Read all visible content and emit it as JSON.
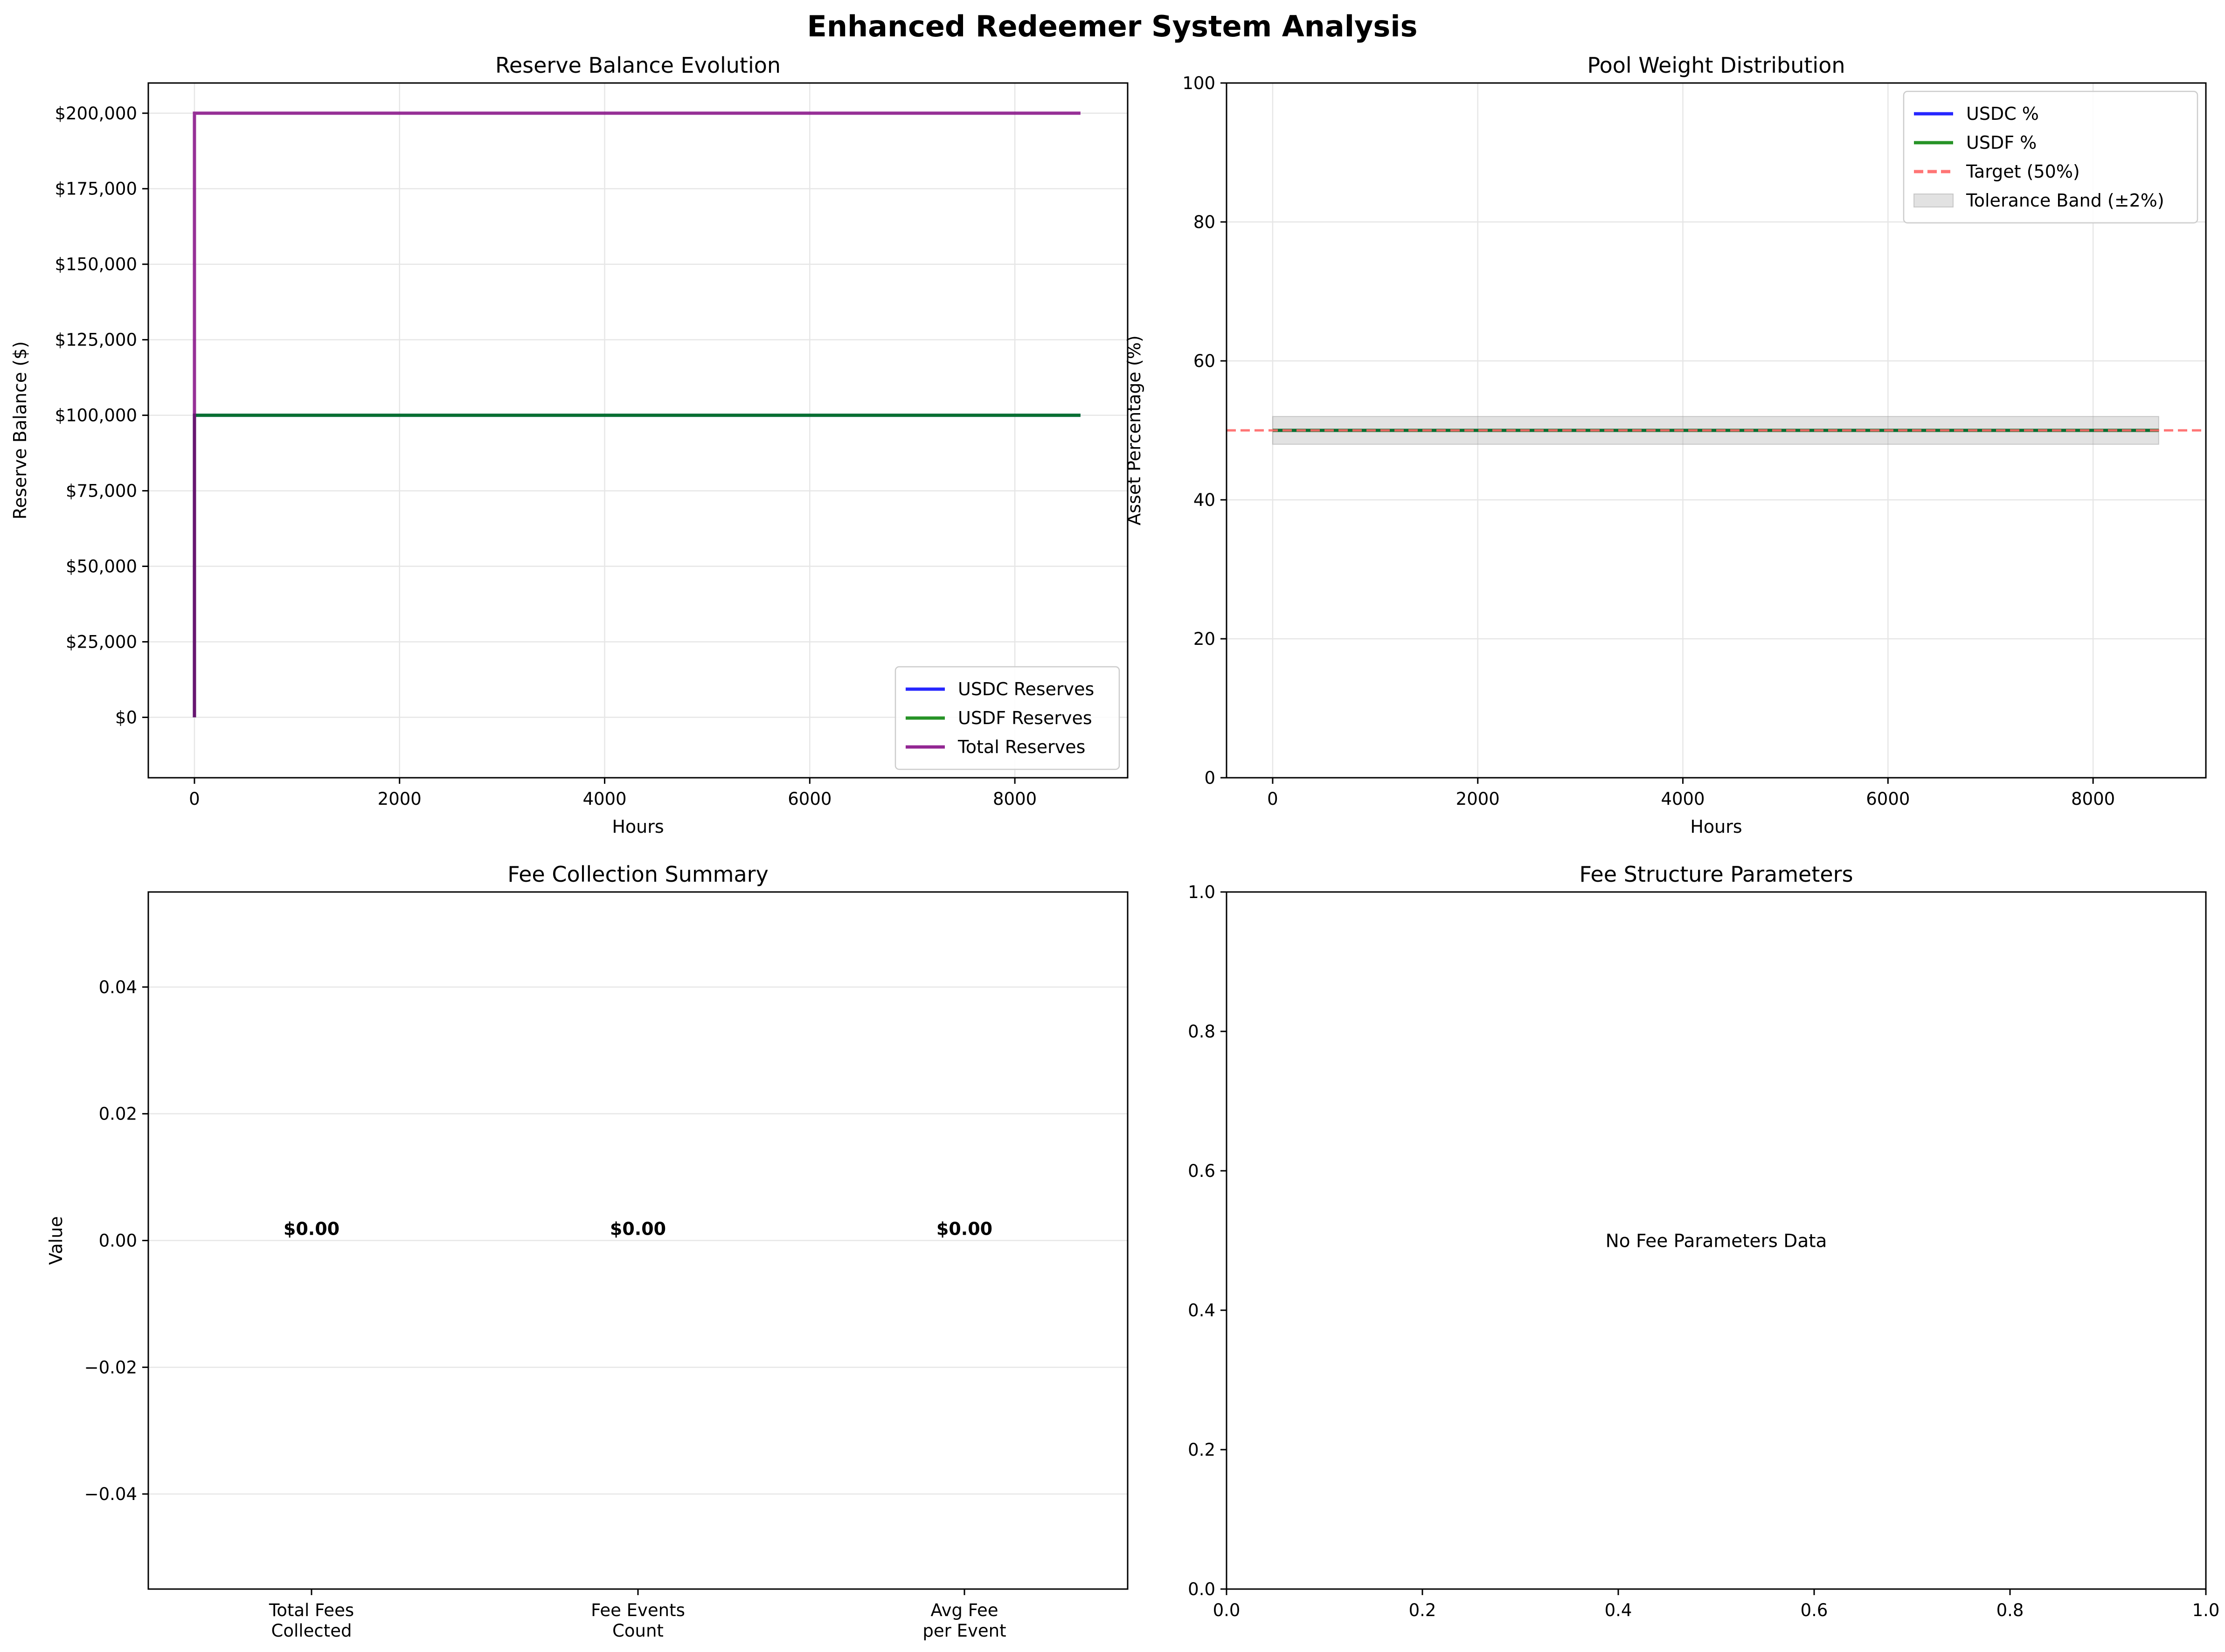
{
  "figure": {
    "title": "Enhanced Redeemer System Analysis"
  },
  "chart_data": [
    {
      "type": "line",
      "title": "Reserve Balance Evolution",
      "xlabel": "Hours",
      "ylabel": "Reserve Balance ($)",
      "xlim": [
        -450,
        9100
      ],
      "ylim": [
        -20000,
        210000
      ],
      "xticks": [
        0,
        2000,
        4000,
        6000,
        8000
      ],
      "xtick_labels": [
        "0",
        "2000",
        "4000",
        "6000",
        "8000"
      ],
      "yticks": [
        0,
        25000,
        50000,
        75000,
        100000,
        125000,
        150000,
        175000,
        200000
      ],
      "ytick_labels": [
        "$0",
        "$25,000",
        "$50,000",
        "$75,000",
        "$100,000",
        "$125,000",
        "$150,000",
        "$175,000",
        "$200,000"
      ],
      "grid": true,
      "legend_position": "lower right",
      "series": [
        {
          "name": "USDC Reserves",
          "color": "#0000ff",
          "points": [
            [
              0,
              0
            ],
            [
              0,
              100000
            ],
            [
              8640,
              100000
            ]
          ]
        },
        {
          "name": "USDF Reserves",
          "color": "#008000",
          "points": [
            [
              0,
              0
            ],
            [
              0,
              100000
            ],
            [
              8640,
              100000
            ]
          ]
        },
        {
          "name": "Total Reserves",
          "color": "#800080",
          "points": [
            [
              0,
              0
            ],
            [
              0,
              200000
            ],
            [
              8640,
              200000
            ]
          ]
        }
      ]
    },
    {
      "type": "line",
      "title": "Pool Weight Distribution",
      "xlabel": "Hours",
      "ylabel": "Asset Percentage (%)",
      "xlim": [
        -450,
        9100
      ],
      "ylim": [
        0,
        100
      ],
      "xticks": [
        0,
        2000,
        4000,
        6000,
        8000
      ],
      "xtick_labels": [
        "0",
        "2000",
        "4000",
        "6000",
        "8000"
      ],
      "yticks": [
        0,
        20,
        40,
        60,
        80,
        100
      ],
      "ytick_labels": [
        "0",
        "20",
        "40",
        "60",
        "80",
        "100"
      ],
      "grid": true,
      "legend_position": "upper right",
      "series": [
        {
          "name": "USDC %",
          "color": "#0000ff",
          "points": [
            [
              0,
              50
            ],
            [
              8640,
              50
            ]
          ]
        },
        {
          "name": "USDF %",
          "color": "#008000",
          "points": [
            [
              0,
              50
            ],
            [
              8640,
              50
            ]
          ]
        }
      ],
      "reference_line": {
        "name": "Target (50%)",
        "y": 50,
        "color": "#ff6666",
        "style": "dashed"
      },
      "band": {
        "name": "Tolerance Band (±2%)",
        "x": [
          0,
          8640
        ],
        "y": [
          48,
          52
        ],
        "color": "#a0a0a0"
      }
    },
    {
      "type": "bar",
      "title": "Fee Collection Summary",
      "xlabel": "",
      "ylabel": "Value",
      "categories": [
        [
          "Total Fees",
          "Collected"
        ],
        [
          "Fee Events",
          "Count"
        ],
        [
          "Avg Fee",
          "per Event"
        ]
      ],
      "values": [
        0,
        0,
        0
      ],
      "data_labels": [
        "$0.00",
        "$0.00",
        "$0.00"
      ],
      "ylim": [
        -0.055,
        0.055
      ],
      "yticks": [
        -0.04,
        -0.02,
        0.0,
        0.02,
        0.04
      ],
      "ytick_labels": [
        "−0.04",
        "−0.02",
        "0.00",
        "0.02",
        "0.04"
      ],
      "grid": true
    },
    {
      "type": "table",
      "title": "Fee Structure Parameters",
      "xlim": [
        0,
        1
      ],
      "ylim": [
        0,
        1
      ],
      "xticks": [
        0,
        0.2,
        0.4,
        0.6,
        0.8,
        1.0
      ],
      "xtick_labels": [
        "0.0",
        "0.2",
        "0.4",
        "0.6",
        "0.8",
        "1.0"
      ],
      "yticks": [
        0,
        0.2,
        0.4,
        0.6,
        0.8,
        1.0
      ],
      "ytick_labels": [
        "0.0",
        "0.2",
        "0.4",
        "0.6",
        "0.8",
        "1.0"
      ],
      "message": "No Fee Parameters Data",
      "grid": false
    }
  ]
}
